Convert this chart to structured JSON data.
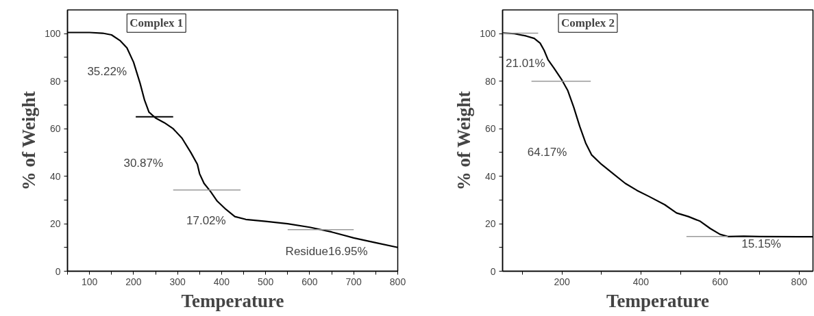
{
  "chart_data": [
    {
      "type": "line",
      "title": "Complex 1",
      "xlabel": "Temperature",
      "ylabel": "% of Weight",
      "xlim": [
        50,
        800
      ],
      "ylim": [
        0,
        110
      ],
      "xticks": [
        {
          "value": 50,
          "label": null
        },
        100,
        {
          "value": 150,
          "label": null
        },
        200,
        {
          "value": 250,
          "label": null
        },
        300,
        {
          "value": 350,
          "label": null
        },
        400,
        {
          "value": 450,
          "label": null
        },
        500,
        {
          "value": 550,
          "label": null
        },
        600,
        {
          "value": 650,
          "label": null
        },
        700,
        {
          "value": 750,
          "label": null
        },
        800
      ],
      "yticks": [
        0,
        {
          "value": 10,
          "label": null
        },
        20,
        {
          "value": 30,
          "label": null
        },
        40,
        {
          "value": 50,
          "label": null
        },
        60,
        {
          "value": 70,
          "label": null
        },
        80,
        {
          "value": 90,
          "label": null
        },
        100
      ],
      "grid": false,
      "marker": "none",
      "line_style": "solid",
      "x": [
        50,
        100,
        130,
        150,
        170,
        185,
        200,
        215,
        225,
        235,
        250,
        270,
        290,
        310,
        330,
        345,
        350,
        360,
        375,
        390,
        410,
        430,
        455,
        500,
        550,
        600,
        650,
        700,
        750,
        800
      ],
      "series": [
        {
          "color": "#000000",
          "values": [
            100.5,
            100.5,
            100.2,
            99.5,
            97,
            94,
            88,
            79,
            72,
            67,
            64.5,
            62.5,
            60,
            56,
            50,
            45,
            41,
            37,
            33.5,
            29.5,
            26,
            23,
            21.8,
            21,
            20,
            18.5,
            16.5,
            14,
            12,
            10
          ]
        },
        {
          "color": "#000000",
          "x": [
            205,
            290
          ],
          "values": [
            65,
            65
          ]
        },
        {
          "color": "#999999",
          "x": [
            290,
            443
          ],
          "values": [
            34.2,
            34.2
          ]
        },
        {
          "color": "#999999",
          "x": [
            550,
            700
          ],
          "values": [
            17.5,
            17.5
          ]
        }
      ],
      "annotations": [
        "35.22%",
        "30.87%",
        "17.02%",
        "Residue16.95%"
      ]
    },
    {
      "type": "line",
      "title": "Complex 2",
      "xlabel": "Temperature",
      "ylabel": "% of Weight",
      "xlim": [
        50,
        835
      ],
      "ylim": [
        0,
        110
      ],
      "xticks": [
        {
          "value": 100,
          "label": null
        },
        200,
        {
          "value": 300,
          "label": null
        },
        400,
        {
          "value": 500,
          "label": null
        },
        600,
        {
          "value": 700,
          "label": null
        },
        800
      ],
      "yticks": [
        0,
        {
          "value": 10,
          "label": null
        },
        20,
        {
          "value": 30,
          "label": null
        },
        40,
        {
          "value": 50,
          "label": null
        },
        60,
        {
          "value": 70,
          "label": null
        },
        80,
        {
          "value": 90,
          "label": null
        },
        100
      ],
      "grid": false,
      "marker": "none",
      "line_style": "solid",
      "x": [
        50,
        80,
        110,
        130,
        145,
        155,
        165,
        180,
        200,
        215,
        230,
        245,
        260,
        275,
        300,
        330,
        360,
        390,
        420,
        460,
        490,
        520,
        550,
        575,
        600,
        620,
        660,
        700,
        800,
        835
      ],
      "series": [
        {
          "color": "#000000",
          "values": [
            100.3,
            100,
            99,
            98,
            96,
            93,
            89,
            85.5,
            80.5,
            76,
            69,
            61,
            54,
            49,
            45,
            41,
            37,
            34,
            31.5,
            28,
            24.5,
            23,
            21,
            18,
            15.5,
            14.6,
            14.7,
            14.6,
            14.5,
            14.5
          ]
        },
        {
          "color": "#999999",
          "x": [
            50,
            140
          ],
          "values": [
            100.2,
            100.2
          ]
        },
        {
          "color": "#999999",
          "x": [
            123,
            273
          ],
          "values": [
            80,
            80
          ]
        },
        {
          "color": "#999999",
          "x": [
            515,
            620
          ],
          "values": [
            14.6,
            14.6
          ]
        }
      ],
      "annotations": [
        "21.01%",
        "64.17%",
        "15.15%"
      ]
    }
  ]
}
